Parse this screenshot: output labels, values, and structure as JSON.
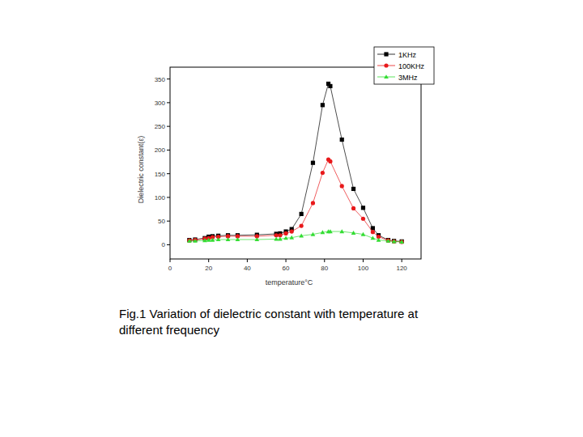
{
  "chart_data": {
    "type": "line",
    "caption": "Fig.1 Variation of dielectric constant with temperature at different frequency",
    "x_label": "temperature°C",
    "y_label": "Dielectric constant(ε)",
    "x": [
      10,
      13,
      18,
      20,
      22,
      25,
      30,
      35,
      45,
      55,
      57,
      60,
      63,
      68,
      74,
      79,
      82,
      83,
      89,
      95,
      100,
      105,
      108,
      113,
      116,
      120
    ],
    "series": [
      {
        "name": "1KHz",
        "color": "#000000",
        "marker": "square",
        "line_style": "solid",
        "values": [
          10,
          11,
          14,
          17,
          18,
          19,
          20,
          20,
          21,
          23,
          24,
          28,
          33,
          65,
          173,
          295,
          340,
          335,
          222,
          118,
          78,
          35,
          20,
          10,
          8,
          7
        ]
      },
      {
        "name": "100KHz",
        "color": "#e8191b",
        "marker": "circle",
        "line_style": "solid",
        "values": [
          9,
          10,
          13,
          14,
          16,
          17,
          18,
          18,
          18,
          20,
          20,
          24,
          28,
          40,
          88,
          152,
          180,
          176,
          124,
          77,
          55,
          27,
          17,
          9,
          7,
          6
        ]
      },
      {
        "name": "3MHz",
        "color": "#33dd33",
        "marker": "triangle",
        "line_style": "solid",
        "values": [
          8,
          8,
          9,
          10,
          10,
          11,
          11,
          11,
          11,
          12,
          12,
          14,
          15,
          19,
          22,
          26,
          28,
          28,
          28,
          25,
          22,
          14,
          10,
          8,
          7,
          6
        ]
      }
    ],
    "xlim": [
      0,
      130
    ],
    "ylim": [
      -30,
      375
    ],
    "xticks": [
      0,
      20,
      40,
      60,
      80,
      100,
      120
    ],
    "yticks": [
      0,
      50,
      100,
      150,
      200,
      250,
      300,
      350
    ],
    "grid": false,
    "legend": "top-right"
  }
}
